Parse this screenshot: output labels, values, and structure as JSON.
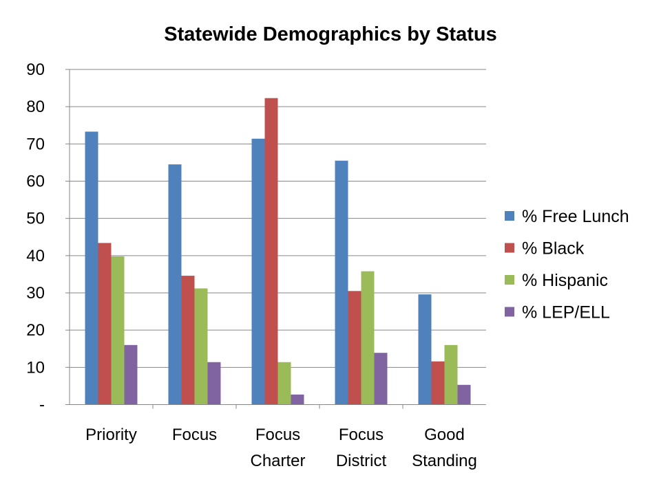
{
  "chart_data": {
    "type": "bar",
    "title": "Statewide Demographics by Status",
    "xlabel": "",
    "ylabel": "",
    "ylim": [
      0,
      90
    ],
    "yticks": [
      0,
      10,
      20,
      30,
      40,
      50,
      60,
      70,
      80,
      90
    ],
    "ytick_labels": [
      "-",
      "10",
      "20",
      "30",
      "40",
      "50",
      "60",
      "70",
      "80",
      "90"
    ],
    "grid": true,
    "legend": "right",
    "categories": [
      [
        "Priority"
      ],
      [
        "Focus"
      ],
      [
        "Focus",
        "Charter"
      ],
      [
        "Focus",
        "District"
      ],
      [
        "Good",
        "Standing"
      ]
    ],
    "series": [
      {
        "name": "% Free Lunch",
        "color": "#4f81bd",
        "values": [
          73.3,
          64.5,
          71.4,
          65.5,
          29.6
        ]
      },
      {
        "name": "% Black",
        "color": "#c0504d",
        "values": [
          43.4,
          34.6,
          82.3,
          30.5,
          11.6
        ]
      },
      {
        "name": "% Hispanic",
        "color": "#9bbb59",
        "values": [
          39.8,
          31.2,
          11.4,
          35.8,
          16.0
        ]
      },
      {
        "name": "% LEP/ELL",
        "color": "#8064a2",
        "values": [
          16.0,
          11.4,
          2.7,
          13.9,
          5.3
        ]
      }
    ]
  }
}
